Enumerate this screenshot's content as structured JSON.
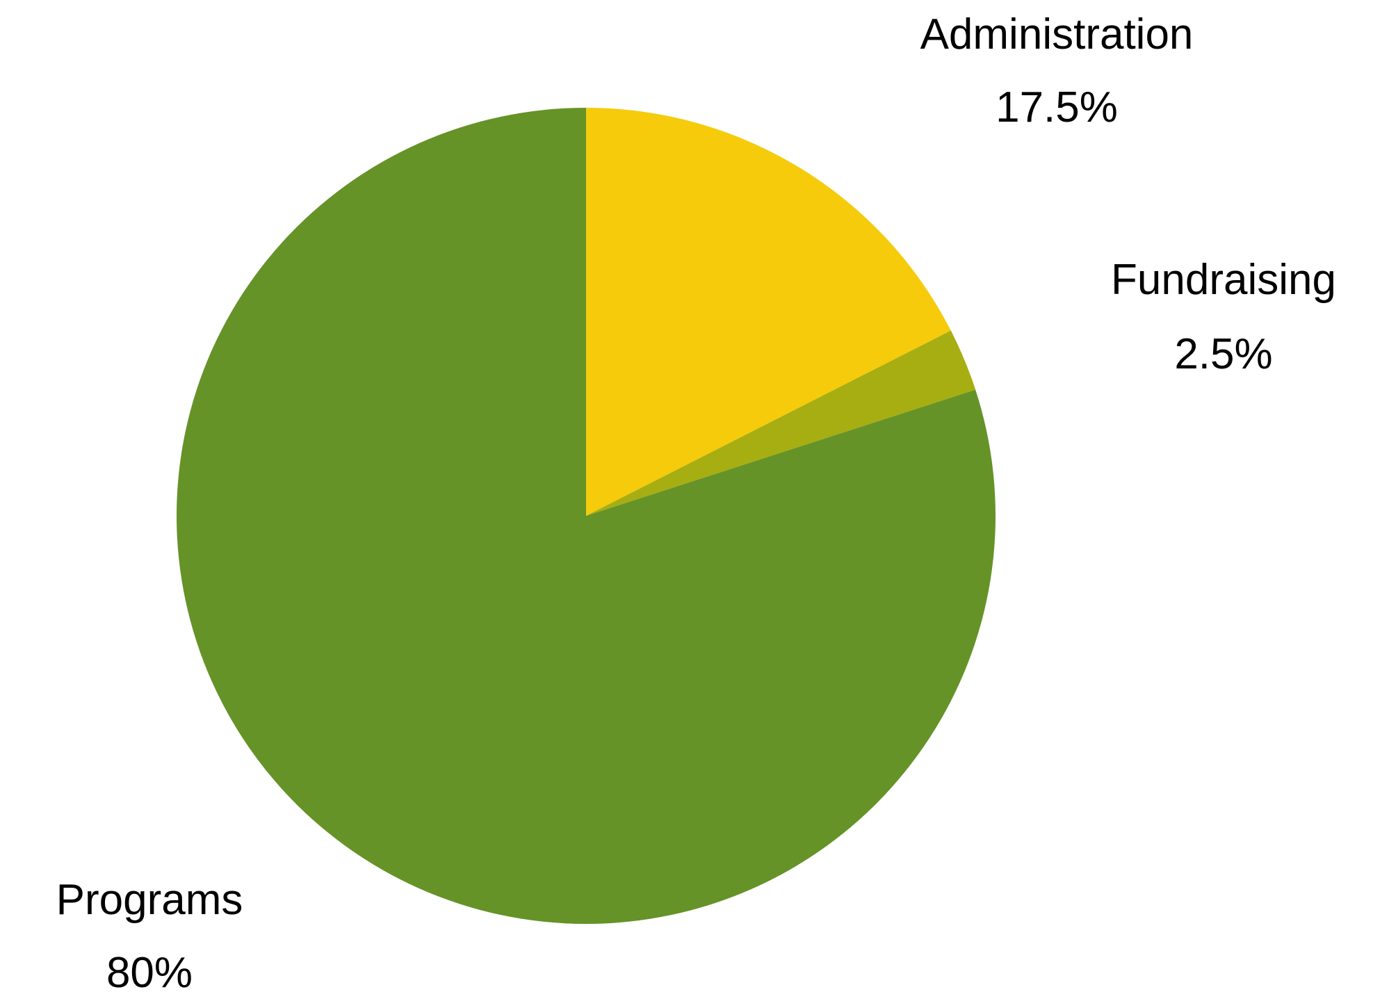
{
  "chart_data": {
    "type": "pie",
    "start_angle_deg": 0,
    "direction": "clockwise",
    "slices": [
      {
        "label": "Administration",
        "value": 17.5,
        "value_label": "17.5%",
        "color": "#f5cb0c"
      },
      {
        "label": "Fundraising",
        "value": 2.5,
        "value_label": "2.5%",
        "color": "#a7ae12"
      },
      {
        "label": "Programs",
        "value": 80,
        "value_label": "80%",
        "color": "#659327"
      }
    ]
  }
}
